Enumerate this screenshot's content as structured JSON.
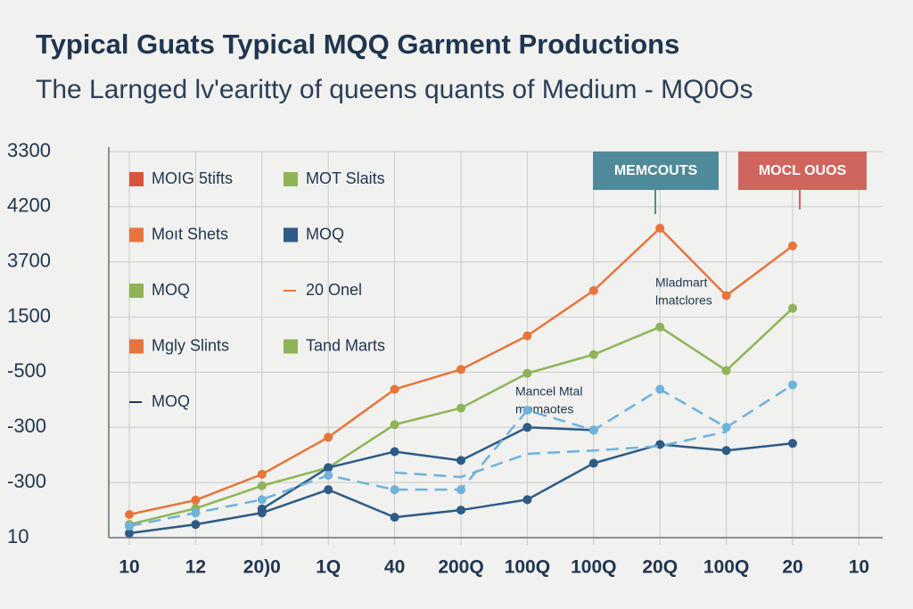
{
  "chart_data": {
    "type": "line",
    "title": "Typical Guats Typical MQQ Garment Productions",
    "subtitle": "The Larnged lv'earitty of queens quants of Medium - MQ0Os",
    "categories": [
      "10",
      "12",
      "20)0",
      "1Q",
      "40",
      "200Q",
      "100Q",
      "100Q",
      "20Q",
      "100Q",
      "20",
      "10"
    ],
    "ylim": [
      0,
      7
    ],
    "yticks": [
      {
        "value": 0,
        "label": "10"
      },
      {
        "value": 1,
        "label": "-300"
      },
      {
        "value": 2,
        "label": "-300"
      },
      {
        "value": 3,
        "label": "-500"
      },
      {
        "value": 4,
        "label": "1500"
      },
      {
        "value": 5,
        "label": "3700"
      },
      {
        "value": 6,
        "label": "4200"
      },
      {
        "value": 7,
        "label": "3300"
      }
    ],
    "grid": true,
    "series": [
      {
        "color": "#e8743b",
        "dash": false,
        "values": [
          0.42,
          0.68,
          1.15,
          1.82,
          2.69,
          3.05,
          3.66,
          4.48,
          5.61,
          4.39,
          5.29,
          null
        ]
      },
      {
        "color": "#8fb457",
        "dash": false,
        "values": [
          0.24,
          0.53,
          0.94,
          1.27,
          2.05,
          2.35,
          2.98,
          3.32,
          3.82,
          3.03,
          4.16,
          null
        ]
      },
      {
        "color": "#2d5b86",
        "dash": false,
        "values": [
          null,
          null,
          0.52,
          1.27,
          1.56,
          1.4,
          2.0,
          1.95,
          null,
          null,
          null,
          null
        ]
      },
      {
        "color": "#2d5b86",
        "dash": false,
        "values": [
          0.08,
          0.24,
          0.45,
          0.87,
          0.37,
          0.5,
          0.69,
          1.35,
          1.69,
          1.58,
          1.71,
          null
        ]
      },
      {
        "color": "#6fb2dc",
        "dash": true,
        "values": [
          0.21,
          0.45,
          0.69,
          1.13,
          0.87,
          0.87,
          2.31,
          1.95,
          2.69,
          2.0,
          2.77,
          null
        ]
      },
      {
        "color": "#6fb2dc",
        "dash": true,
        "values": [
          null,
          null,
          null,
          null,
          1.18,
          1.1,
          1.52,
          1.58,
          1.66,
          1.92,
          null,
          null
        ]
      }
    ],
    "legend": [
      {
        "name": "MOIG 5tifts",
        "color": "#d9533a",
        "marker": "square"
      },
      {
        "name": "MOT Slaits",
        "color": "#8fb457",
        "marker": "square"
      },
      {
        "name": "Moıt Shets",
        "color": "#e8743b",
        "marker": "square"
      },
      {
        "name": "MOQ",
        "color": "#2d5b86",
        "marker": "square"
      },
      {
        "name": "MOQ",
        "color": "#8fb457",
        "marker": "square"
      },
      {
        "name": "20 Onel",
        "color": "#e8743b",
        "marker": "line"
      },
      {
        "name": "Mgly Slints",
        "color": "#e8743b",
        "marker": "square"
      },
      {
        "name": "Tand Marts",
        "color": "#8fb457",
        "marker": "square"
      },
      {
        "name": "MOQ",
        "color": "#1f3550",
        "marker": "line"
      }
    ],
    "callouts": [
      {
        "text": "MEMCOUTS",
        "color": "#4f8a9a"
      },
      {
        "text": "MOCL OUOS",
        "color": "#d0655e"
      }
    ],
    "annotations": [
      {
        "lines": [
          "Mladmart",
          "lmatclores"
        ]
      },
      {
        "lines": [
          "Mancel Mtal",
          "momaotes"
        ]
      }
    ]
  }
}
